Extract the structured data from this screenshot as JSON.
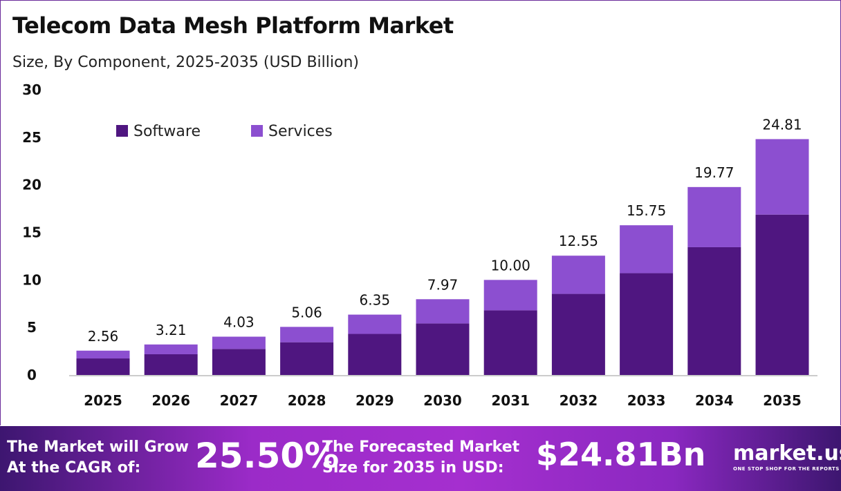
{
  "title": "Telecom Data Mesh Platform Market",
  "subtitle": "Size, By Component, 2025-2035 (USD Billion)",
  "chart_data": {
    "type": "bar",
    "stacked": true,
    "categories": [
      "2025",
      "2026",
      "2027",
      "2028",
      "2029",
      "2030",
      "2031",
      "2032",
      "2033",
      "2034",
      "2035"
    ],
    "series": [
      {
        "name": "Software",
        "color": "#4f1680",
        "values": [
          1.74,
          2.18,
          2.74,
          3.44,
          4.32,
          5.42,
          6.8,
          8.53,
          10.71,
          13.44,
          16.87
        ]
      },
      {
        "name": "Services",
        "color": "#8c4fd0",
        "values": [
          0.82,
          1.03,
          1.29,
          1.62,
          2.03,
          2.55,
          3.2,
          4.02,
          5.04,
          6.33,
          7.94
        ]
      }
    ],
    "totals": [
      "2.56",
      "3.21",
      "4.03",
      "5.06",
      "6.35",
      "7.97",
      "10.00",
      "12.55",
      "15.75",
      "19.77",
      "24.81"
    ],
    "ylim": [
      0,
      30
    ],
    "yticks": [
      "0",
      "5",
      "10",
      "15",
      "20",
      "25",
      "30"
    ],
    "legend_position": "top-left",
    "grid": false
  },
  "footer": {
    "cagr_label_1": "The Market will Grow",
    "cagr_label_2": "At the CAGR of:",
    "cagr_value": "25.50%",
    "forecast_label_1": "The Forecasted Market",
    "forecast_label_2": "Size for 2035 in USD:",
    "forecast_value": "$24.81Bn",
    "logo": "market.us",
    "tagline": "ONE STOP SHOP FOR THE REPORTS"
  }
}
